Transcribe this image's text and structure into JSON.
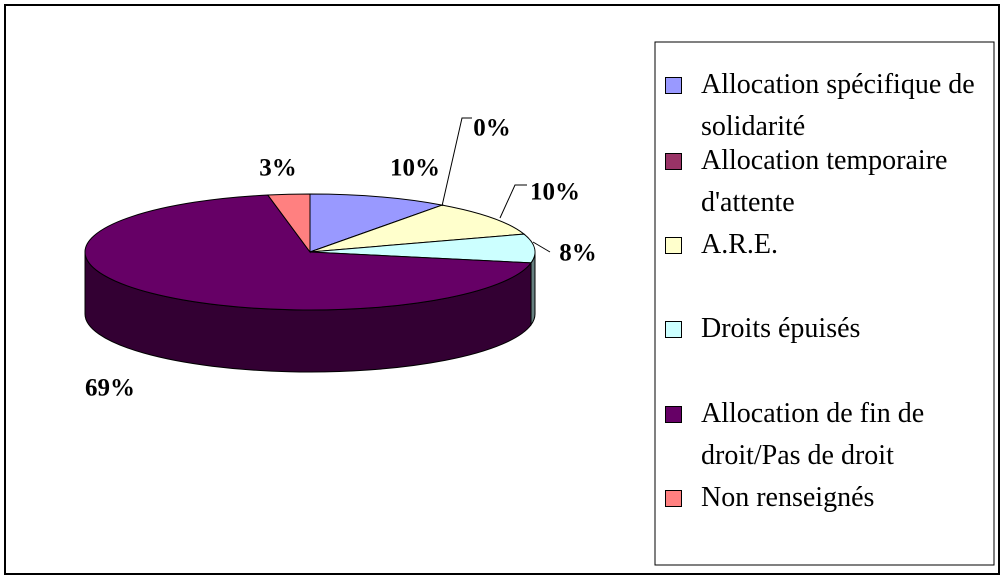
{
  "chart_data": {
    "type": "pie",
    "categories": [
      "Allocation spécifique de solidarité",
      "Allocation temporaire d'attente",
      "A.R.E.",
      "Droits épuisés",
      "Allocation de fin de droit/Pas de droit",
      "Non renseignés"
    ],
    "values": [
      10,
      0,
      10,
      8,
      69,
      3
    ],
    "value_labels": [
      "10%",
      "0%",
      "10%",
      "8%",
      "69%",
      "3%"
    ],
    "colors": [
      "#9999ff",
      "#993366",
      "#ffffcc",
      "#ccffff",
      "#660066",
      "#ff8080"
    ],
    "legend": "right"
  }
}
